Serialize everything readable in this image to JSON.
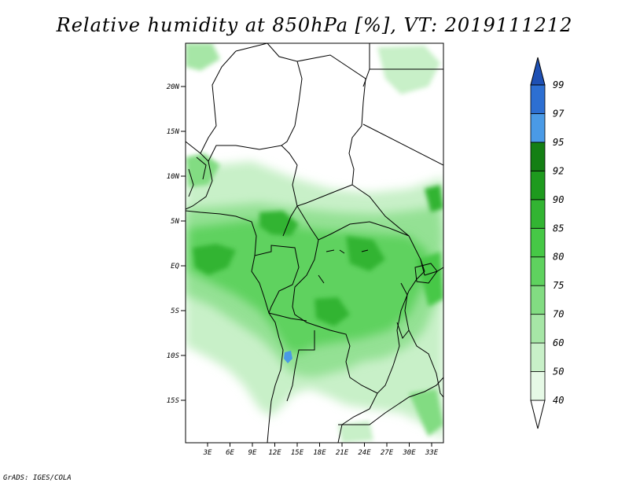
{
  "title": "Relative humidity at 850hPa [%], VT: 2019111212",
  "credit": "GrADS: IGES/COLA",
  "map": {
    "lat_labels": [
      "20N",
      "15N",
      "10N",
      "5N",
      "EQ",
      "5S",
      "10S",
      "15S"
    ],
    "lon_labels": [
      "3E",
      "6E",
      "9E",
      "12E",
      "15E",
      "18E",
      "21E",
      "24E",
      "27E",
      "30E",
      "33E"
    ]
  },
  "colorbar": {
    "levels": [
      "40",
      "50",
      "60",
      "70",
      "75",
      "80",
      "85",
      "90",
      "92",
      "95",
      "97",
      "99"
    ],
    "colors": [
      "#ffffff",
      "#e6f9e6",
      "#c8f0c8",
      "#a6e6a6",
      "#82dc82",
      "#5fd25f",
      "#46c846",
      "#32b432",
      "#1e9a1e",
      "#147f14",
      "#4a9ae6",
      "#2d6fd2",
      "#1e50b4"
    ]
  }
}
